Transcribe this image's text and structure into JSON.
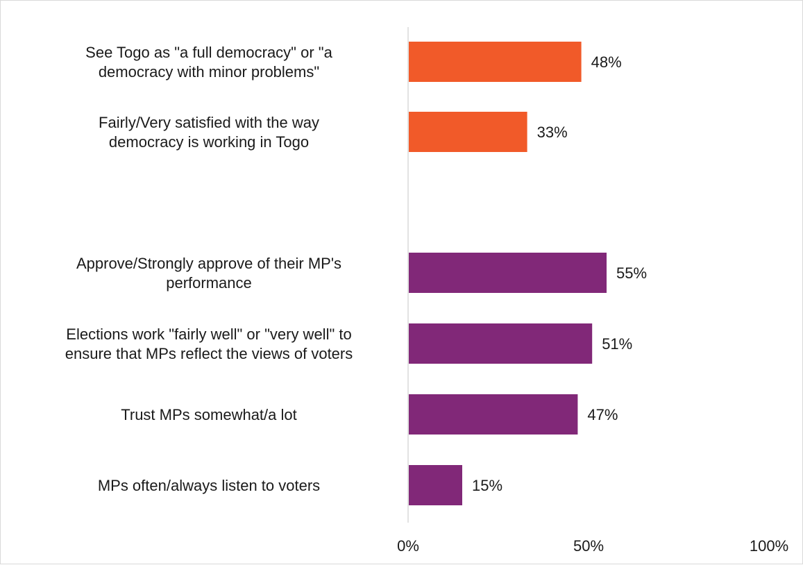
{
  "chart_data": {
    "type": "bar",
    "orientation": "horizontal",
    "categories": [
      [
        "See Togo as \"a full democracy\" or \"a",
        "democracy with minor problems\""
      ],
      [
        "Fairly/Very satisfied with the way",
        "democracy is working in Togo"
      ],
      [
        "Approve/Strongly approve of their MP's",
        "performance"
      ],
      [
        "Elections work \"fairly well\" or \"very well\" to",
        "ensure that MPs reflect the views of voters"
      ],
      [
        "Trust MPs somewhat/a lot"
      ],
      [
        "MPs often/always listen to voters"
      ]
    ],
    "values": [
      48,
      33,
      55,
      51,
      47,
      15
    ],
    "value_labels": [
      "48%",
      "33%",
      "55%",
      "51%",
      "47%",
      "15%"
    ],
    "groups": [
      0,
      0,
      1,
      1,
      1,
      1
    ],
    "group_colors": [
      "#F15A29",
      "#812878"
    ],
    "xlim": [
      0,
      100
    ],
    "xticks": [
      0,
      50,
      100
    ],
    "xtick_labels": [
      "0%",
      "50%",
      "100%"
    ],
    "grid": false,
    "legend": "none"
  }
}
